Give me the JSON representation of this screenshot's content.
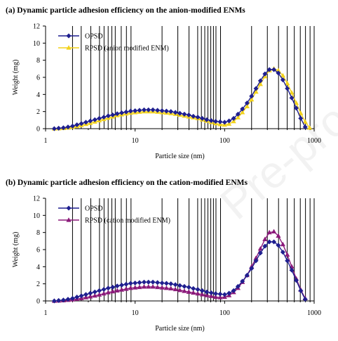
{
  "chart_data": [
    {
      "type": "line",
      "title": "(a) Dynamic particle adhesion efficiency on the anion-modified ENMs",
      "xlabel": "Particle size (nm)",
      "ylabel": "Weight (mg)",
      "xscale": "log",
      "xlim": [
        1,
        1000
      ],
      "ylim": [
        0,
        12
      ],
      "yticks": [
        0,
        2,
        4,
        6,
        8,
        10,
        12
      ],
      "xticks": [
        1,
        10,
        100,
        1000
      ],
      "xtick_labels": [
        "1",
        "10",
        "100",
        "1000"
      ],
      "vlines": [
        2,
        2.5,
        3.2,
        4,
        4.5,
        5,
        5.5,
        6,
        7,
        8,
        9,
        20,
        30,
        40,
        50,
        55,
        60,
        65,
        70,
        75,
        80,
        90,
        200,
        300,
        400,
        500,
        600,
        700,
        800,
        900,
        1000
      ],
      "legend_position": "top-left",
      "grid": false,
      "series": [
        {
          "name": "OPSD",
          "color": "#1f1f8f",
          "marker": "diamond",
          "x": [
            1.25,
            1.4,
            1.58,
            1.78,
            2.0,
            2.24,
            2.51,
            2.82,
            3.16,
            3.55,
            3.98,
            4.47,
            5.01,
            5.62,
            6.31,
            7.08,
            7.94,
            8.91,
            10.0,
            11.2,
            12.6,
            14.1,
            15.8,
            17.8,
            20.0,
            22.4,
            25.1,
            28.2,
            31.6,
            35.5,
            39.8,
            44.7,
            50.1,
            56.2,
            63.1,
            70.8,
            79.4,
            89.1,
            100,
            112,
            126,
            141,
            158,
            178,
            200,
            224,
            251,
            282,
            316,
            355,
            398,
            447,
            501,
            562,
            631,
            708,
            794
          ],
          "values": [
            0.0,
            0.05,
            0.1,
            0.2,
            0.3,
            0.45,
            0.6,
            0.75,
            0.9,
            1.05,
            1.2,
            1.35,
            1.5,
            1.6,
            1.75,
            1.85,
            1.95,
            2.05,
            2.1,
            2.15,
            2.2,
            2.2,
            2.2,
            2.15,
            2.1,
            2.05,
            2.0,
            1.9,
            1.8,
            1.7,
            1.6,
            1.45,
            1.35,
            1.2,
            1.05,
            0.95,
            0.85,
            0.8,
            0.75,
            0.9,
            1.2,
            1.7,
            2.3,
            3.0,
            3.8,
            4.7,
            5.6,
            6.4,
            6.9,
            6.9,
            6.5,
            5.7,
            4.7,
            3.6,
            2.4,
            1.2,
            0.2
          ]
        },
        {
          "name": "RPSD (anion modified ENM)",
          "color": "#f2d21c",
          "marker": "triangle",
          "x": [
            1.25,
            1.4,
            1.58,
            1.78,
            2.0,
            2.24,
            2.51,
            2.82,
            3.16,
            3.55,
            3.98,
            4.47,
            5.01,
            5.62,
            6.31,
            7.08,
            7.94,
            8.91,
            10.0,
            11.2,
            12.6,
            14.1,
            15.8,
            17.8,
            20.0,
            22.4,
            25.1,
            28.2,
            31.6,
            35.5,
            39.8,
            44.7,
            50.1,
            56.2,
            63.1,
            70.8,
            79.4,
            89.1,
            100,
            112,
            126,
            141,
            158,
            178,
            200,
            224,
            251,
            282,
            316,
            355,
            398,
            447,
            501,
            562,
            631,
            708,
            794,
            891
          ],
          "values": [
            0.0,
            0.02,
            0.05,
            0.1,
            0.18,
            0.28,
            0.4,
            0.52,
            0.65,
            0.8,
            0.95,
            1.1,
            1.25,
            1.4,
            1.55,
            1.65,
            1.75,
            1.85,
            1.9,
            1.95,
            2.0,
            2.0,
            2.0,
            1.95,
            1.9,
            1.85,
            1.8,
            1.7,
            1.6,
            1.5,
            1.4,
            1.3,
            1.2,
            1.05,
            0.9,
            0.75,
            0.6,
            0.5,
            0.45,
            0.55,
            0.85,
            1.3,
            1.9,
            2.6,
            3.4,
            4.3,
            5.2,
            6.1,
            6.8,
            7.0,
            6.8,
            6.2,
            5.3,
            4.2,
            3.0,
            1.8,
            0.8,
            0.1
          ]
        }
      ]
    },
    {
      "type": "line",
      "title": "(b) Dynamic particle adhesion efficiency on the cation-modified ENMs",
      "xlabel": "Particle size (nm)",
      "ylabel": "Weight (mg)",
      "xscale": "log",
      "xlim": [
        1,
        1000
      ],
      "ylim": [
        0,
        12
      ],
      "yticks": [
        0,
        2,
        4,
        6,
        8,
        10,
        12
      ],
      "xticks": [
        1,
        10,
        100,
        1000
      ],
      "xtick_labels": [
        "1",
        "10",
        "100",
        "1000"
      ],
      "vlines": [
        2,
        2.5,
        3.2,
        4,
        4.5,
        5,
        5.5,
        6,
        7,
        8,
        9,
        20,
        30,
        40,
        50,
        55,
        60,
        65,
        70,
        75,
        80,
        90,
        200,
        300,
        400,
        500,
        600,
        700,
        800,
        900,
        1000
      ],
      "legend_position": "top-left",
      "grid": false,
      "series": [
        {
          "name": "OPSD",
          "color": "#1f1f8f",
          "marker": "diamond",
          "x": [
            1.25,
            1.4,
            1.58,
            1.78,
            2.0,
            2.24,
            2.51,
            2.82,
            3.16,
            3.55,
            3.98,
            4.47,
            5.01,
            5.62,
            6.31,
            7.08,
            7.94,
            8.91,
            10.0,
            11.2,
            12.6,
            14.1,
            15.8,
            17.8,
            20.0,
            22.4,
            25.1,
            28.2,
            31.6,
            35.5,
            39.8,
            44.7,
            50.1,
            56.2,
            63.1,
            70.8,
            79.4,
            89.1,
            100,
            112,
            126,
            141,
            158,
            178,
            200,
            224,
            251,
            282,
            316,
            355,
            398,
            447,
            501,
            562,
            631,
            708,
            794
          ],
          "values": [
            0.0,
            0.05,
            0.1,
            0.2,
            0.3,
            0.45,
            0.6,
            0.75,
            0.9,
            1.05,
            1.2,
            1.35,
            1.5,
            1.6,
            1.75,
            1.85,
            1.95,
            2.05,
            2.1,
            2.15,
            2.2,
            2.2,
            2.2,
            2.15,
            2.1,
            2.05,
            2.0,
            1.9,
            1.8,
            1.7,
            1.6,
            1.45,
            1.35,
            1.2,
            1.05,
            0.95,
            0.85,
            0.8,
            0.75,
            0.9,
            1.2,
            1.7,
            2.3,
            3.0,
            3.8,
            4.7,
            5.6,
            6.4,
            6.9,
            6.9,
            6.5,
            5.7,
            4.7,
            3.6,
            2.4,
            1.2,
            0.2
          ]
        },
        {
          "name": "RPSD (cation modified ENM)",
          "color": "#8b1a7a",
          "marker": "triangle",
          "x": [
            1.25,
            1.4,
            1.58,
            1.78,
            2.0,
            2.24,
            2.51,
            2.82,
            3.16,
            3.55,
            3.98,
            4.47,
            5.01,
            5.62,
            6.31,
            7.08,
            7.94,
            8.91,
            10.0,
            11.2,
            12.6,
            14.1,
            15.8,
            17.8,
            20.0,
            22.4,
            25.1,
            28.2,
            31.6,
            35.5,
            39.8,
            44.7,
            50.1,
            56.2,
            63.1,
            70.8,
            79.4,
            89.1,
            100,
            112,
            126,
            141,
            158,
            178,
            200,
            224,
            251,
            282,
            316,
            355,
            398,
            447,
            501,
            562,
            631,
            708,
            794
          ],
          "values": [
            0.0,
            0.02,
            0.05,
            0.1,
            0.15,
            0.22,
            0.3,
            0.4,
            0.5,
            0.6,
            0.72,
            0.85,
            0.98,
            1.1,
            1.2,
            1.3,
            1.4,
            1.5,
            1.55,
            1.6,
            1.65,
            1.65,
            1.65,
            1.6,
            1.55,
            1.5,
            1.45,
            1.35,
            1.25,
            1.15,
            1.05,
            0.95,
            0.85,
            0.75,
            0.65,
            0.55,
            0.45,
            0.4,
            0.45,
            0.65,
            1.0,
            1.5,
            2.2,
            3.0,
            4.0,
            5.0,
            6.1,
            7.2,
            8.0,
            8.1,
            7.6,
            6.6,
            5.4,
            4.0,
            2.6,
            1.3,
            0.3
          ]
        }
      ]
    }
  ],
  "watermark": "Pre-proof"
}
